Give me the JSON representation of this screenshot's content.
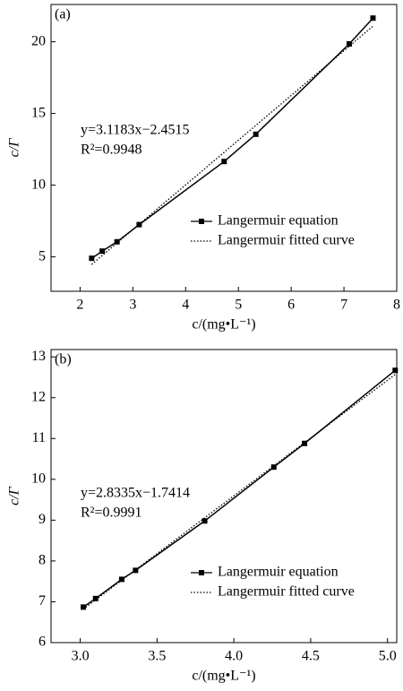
{
  "chart_data": [
    {
      "type": "line",
      "panel_label": "(a)",
      "x_label": "c/(mg•L⁻¹)",
      "y_label": "c/Γ",
      "annotations": [
        "y=3.1183x−2.4515",
        "R²=0.9948"
      ],
      "xlim": [
        1.45,
        8
      ],
      "ylim": [
        2.6,
        22.6
      ],
      "xticks": [
        2,
        3,
        4,
        5,
        6,
        7,
        8
      ],
      "yticks": [
        5,
        10,
        15,
        20
      ],
      "legend": "lower right",
      "series": [
        {
          "name": "Langermuir equation",
          "color": "#000000",
          "marker": "square",
          "dash": "solid",
          "x": [
            2.22,
            2.42,
            2.7,
            3.12,
            4.73,
            5.33,
            7.1,
            7.55
          ],
          "values": [
            4.9,
            5.4,
            6.05,
            7.25,
            11.65,
            13.55,
            19.85,
            21.65
          ]
        },
        {
          "name": "Langermuir fitted curve",
          "color": "#000000",
          "marker": "none",
          "dash": "dotted",
          "x": [
            2.22,
            7.55
          ],
          "values": [
            4.47,
            21.09
          ]
        }
      ]
    },
    {
      "type": "line",
      "panel_label": "(b)",
      "x_label": "c/(mg•L⁻¹)",
      "y_label": "c/Γ",
      "annotations": [
        "y=2.8335x−1.7414",
        "R²=0.9991"
      ],
      "xlim": [
        2.81,
        5.06
      ],
      "ylim": [
        6,
        13.18
      ],
      "xticks": [
        {
          "value": 3,
          "label": "3.0"
        },
        {
          "value": 3.5,
          "label": "3.5"
        },
        {
          "value": 4,
          "label": "4.0"
        },
        {
          "value": 4.5,
          "label": "4.5"
        },
        {
          "value": 5,
          "label": "5.0"
        }
      ],
      "yticks": [
        6,
        7,
        8,
        9,
        10,
        11,
        12,
        13
      ],
      "legend": "lower right",
      "series": [
        {
          "name": "Langermuir equation",
          "color": "#000000",
          "marker": "square",
          "dash": "solid",
          "x": [
            3.02,
            3.1,
            3.27,
            3.36,
            3.81,
            4.26,
            4.46,
            5.05
          ],
          "values": [
            6.87,
            7.08,
            7.55,
            7.77,
            8.98,
            10.3,
            10.88,
            12.67
          ]
        },
        {
          "name": "Langermuir fitted curve",
          "color": "#000000",
          "marker": "none",
          "dash": "dotted",
          "x": [
            3.02,
            5.05
          ],
          "values": [
            6.82,
            12.57
          ]
        }
      ]
    }
  ]
}
